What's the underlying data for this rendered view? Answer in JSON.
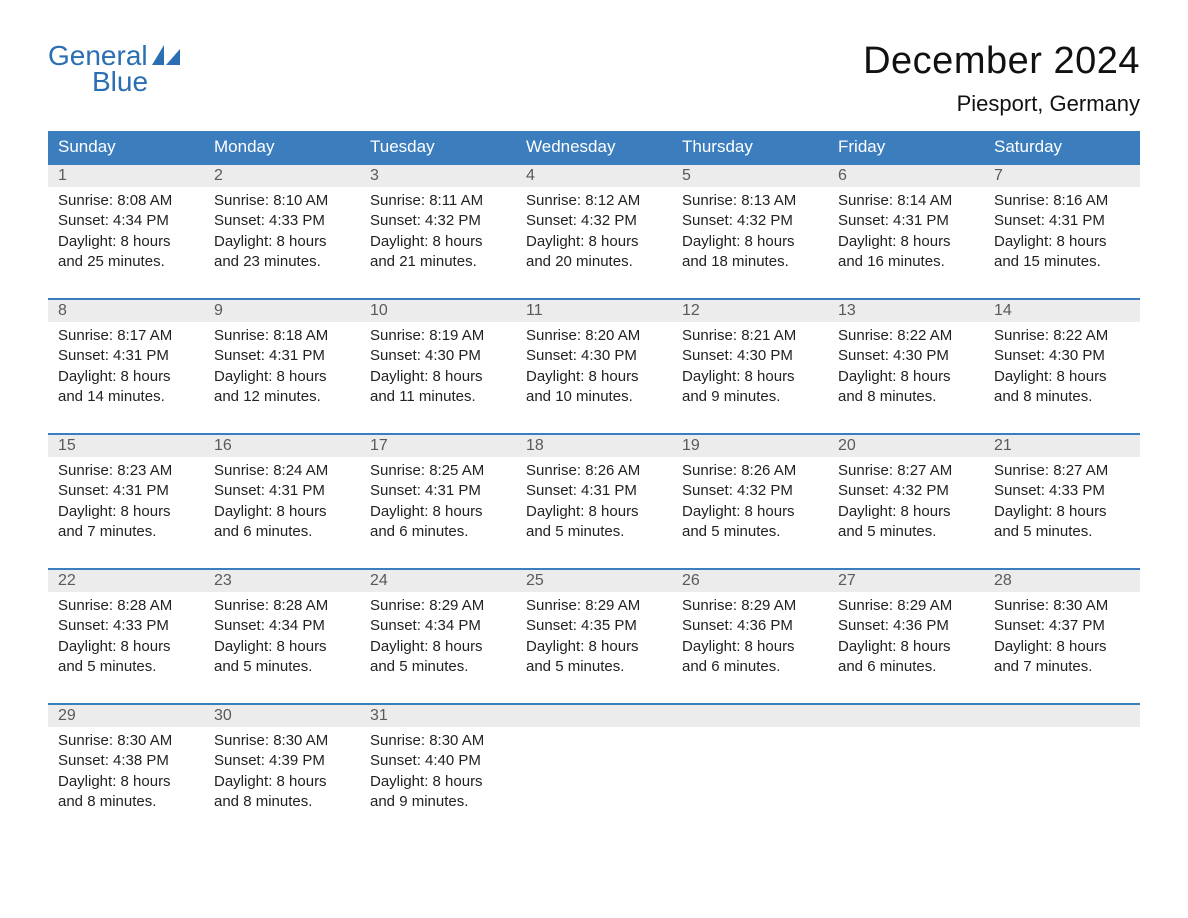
{
  "brand": {
    "word1": "General",
    "word2": "Blue",
    "accent_color": "#2a6fb3"
  },
  "title": "December 2024",
  "location": "Piesport, Germany",
  "colors": {
    "header_bg": "#3b7dbd",
    "header_text": "#ffffff",
    "daynum_bg": "#ececec",
    "daynum_text": "#5a5a5a",
    "body_text": "#222222",
    "week_rule": "#3b7dbd",
    "page_bg": "#ffffff"
  },
  "day_headers": [
    "Sunday",
    "Monday",
    "Tuesday",
    "Wednesday",
    "Thursday",
    "Friday",
    "Saturday"
  ],
  "weeks": [
    [
      {
        "num": "1",
        "sunrise": "Sunrise: 8:08 AM",
        "sunset": "Sunset: 4:34 PM",
        "dl1": "Daylight: 8 hours",
        "dl2": "and 25 minutes."
      },
      {
        "num": "2",
        "sunrise": "Sunrise: 8:10 AM",
        "sunset": "Sunset: 4:33 PM",
        "dl1": "Daylight: 8 hours",
        "dl2": "and 23 minutes."
      },
      {
        "num": "3",
        "sunrise": "Sunrise: 8:11 AM",
        "sunset": "Sunset: 4:32 PM",
        "dl1": "Daylight: 8 hours",
        "dl2": "and 21 minutes."
      },
      {
        "num": "4",
        "sunrise": "Sunrise: 8:12 AM",
        "sunset": "Sunset: 4:32 PM",
        "dl1": "Daylight: 8 hours",
        "dl2": "and 20 minutes."
      },
      {
        "num": "5",
        "sunrise": "Sunrise: 8:13 AM",
        "sunset": "Sunset: 4:32 PM",
        "dl1": "Daylight: 8 hours",
        "dl2": "and 18 minutes."
      },
      {
        "num": "6",
        "sunrise": "Sunrise: 8:14 AM",
        "sunset": "Sunset: 4:31 PM",
        "dl1": "Daylight: 8 hours",
        "dl2": "and 16 minutes."
      },
      {
        "num": "7",
        "sunrise": "Sunrise: 8:16 AM",
        "sunset": "Sunset: 4:31 PM",
        "dl1": "Daylight: 8 hours",
        "dl2": "and 15 minutes."
      }
    ],
    [
      {
        "num": "8",
        "sunrise": "Sunrise: 8:17 AM",
        "sunset": "Sunset: 4:31 PM",
        "dl1": "Daylight: 8 hours",
        "dl2": "and 14 minutes."
      },
      {
        "num": "9",
        "sunrise": "Sunrise: 8:18 AM",
        "sunset": "Sunset: 4:31 PM",
        "dl1": "Daylight: 8 hours",
        "dl2": "and 12 minutes."
      },
      {
        "num": "10",
        "sunrise": "Sunrise: 8:19 AM",
        "sunset": "Sunset: 4:30 PM",
        "dl1": "Daylight: 8 hours",
        "dl2": "and 11 minutes."
      },
      {
        "num": "11",
        "sunrise": "Sunrise: 8:20 AM",
        "sunset": "Sunset: 4:30 PM",
        "dl1": "Daylight: 8 hours",
        "dl2": "and 10 minutes."
      },
      {
        "num": "12",
        "sunrise": "Sunrise: 8:21 AM",
        "sunset": "Sunset: 4:30 PM",
        "dl1": "Daylight: 8 hours",
        "dl2": "and 9 minutes."
      },
      {
        "num": "13",
        "sunrise": "Sunrise: 8:22 AM",
        "sunset": "Sunset: 4:30 PM",
        "dl1": "Daylight: 8 hours",
        "dl2": "and 8 minutes."
      },
      {
        "num": "14",
        "sunrise": "Sunrise: 8:22 AM",
        "sunset": "Sunset: 4:30 PM",
        "dl1": "Daylight: 8 hours",
        "dl2": "and 8 minutes."
      }
    ],
    [
      {
        "num": "15",
        "sunrise": "Sunrise: 8:23 AM",
        "sunset": "Sunset: 4:31 PM",
        "dl1": "Daylight: 8 hours",
        "dl2": "and 7 minutes."
      },
      {
        "num": "16",
        "sunrise": "Sunrise: 8:24 AM",
        "sunset": "Sunset: 4:31 PM",
        "dl1": "Daylight: 8 hours",
        "dl2": "and 6 minutes."
      },
      {
        "num": "17",
        "sunrise": "Sunrise: 8:25 AM",
        "sunset": "Sunset: 4:31 PM",
        "dl1": "Daylight: 8 hours",
        "dl2": "and 6 minutes."
      },
      {
        "num": "18",
        "sunrise": "Sunrise: 8:26 AM",
        "sunset": "Sunset: 4:31 PM",
        "dl1": "Daylight: 8 hours",
        "dl2": "and 5 minutes."
      },
      {
        "num": "19",
        "sunrise": "Sunrise: 8:26 AM",
        "sunset": "Sunset: 4:32 PM",
        "dl1": "Daylight: 8 hours",
        "dl2": "and 5 minutes."
      },
      {
        "num": "20",
        "sunrise": "Sunrise: 8:27 AM",
        "sunset": "Sunset: 4:32 PM",
        "dl1": "Daylight: 8 hours",
        "dl2": "and 5 minutes."
      },
      {
        "num": "21",
        "sunrise": "Sunrise: 8:27 AM",
        "sunset": "Sunset: 4:33 PM",
        "dl1": "Daylight: 8 hours",
        "dl2": "and 5 minutes."
      }
    ],
    [
      {
        "num": "22",
        "sunrise": "Sunrise: 8:28 AM",
        "sunset": "Sunset: 4:33 PM",
        "dl1": "Daylight: 8 hours",
        "dl2": "and 5 minutes."
      },
      {
        "num": "23",
        "sunrise": "Sunrise: 8:28 AM",
        "sunset": "Sunset: 4:34 PM",
        "dl1": "Daylight: 8 hours",
        "dl2": "and 5 minutes."
      },
      {
        "num": "24",
        "sunrise": "Sunrise: 8:29 AM",
        "sunset": "Sunset: 4:34 PM",
        "dl1": "Daylight: 8 hours",
        "dl2": "and 5 minutes."
      },
      {
        "num": "25",
        "sunrise": "Sunrise: 8:29 AM",
        "sunset": "Sunset: 4:35 PM",
        "dl1": "Daylight: 8 hours",
        "dl2": "and 5 minutes."
      },
      {
        "num": "26",
        "sunrise": "Sunrise: 8:29 AM",
        "sunset": "Sunset: 4:36 PM",
        "dl1": "Daylight: 8 hours",
        "dl2": "and 6 minutes."
      },
      {
        "num": "27",
        "sunrise": "Sunrise: 8:29 AM",
        "sunset": "Sunset: 4:36 PM",
        "dl1": "Daylight: 8 hours",
        "dl2": "and 6 minutes."
      },
      {
        "num": "28",
        "sunrise": "Sunrise: 8:30 AM",
        "sunset": "Sunset: 4:37 PM",
        "dl1": "Daylight: 8 hours",
        "dl2": "and 7 minutes."
      }
    ],
    [
      {
        "num": "29",
        "sunrise": "Sunrise: 8:30 AM",
        "sunset": "Sunset: 4:38 PM",
        "dl1": "Daylight: 8 hours",
        "dl2": "and 8 minutes."
      },
      {
        "num": "30",
        "sunrise": "Sunrise: 8:30 AM",
        "sunset": "Sunset: 4:39 PM",
        "dl1": "Daylight: 8 hours",
        "dl2": "and 8 minutes."
      },
      {
        "num": "31",
        "sunrise": "Sunrise: 8:30 AM",
        "sunset": "Sunset: 4:40 PM",
        "dl1": "Daylight: 8 hours",
        "dl2": "and 9 minutes."
      },
      null,
      null,
      null,
      null
    ]
  ]
}
